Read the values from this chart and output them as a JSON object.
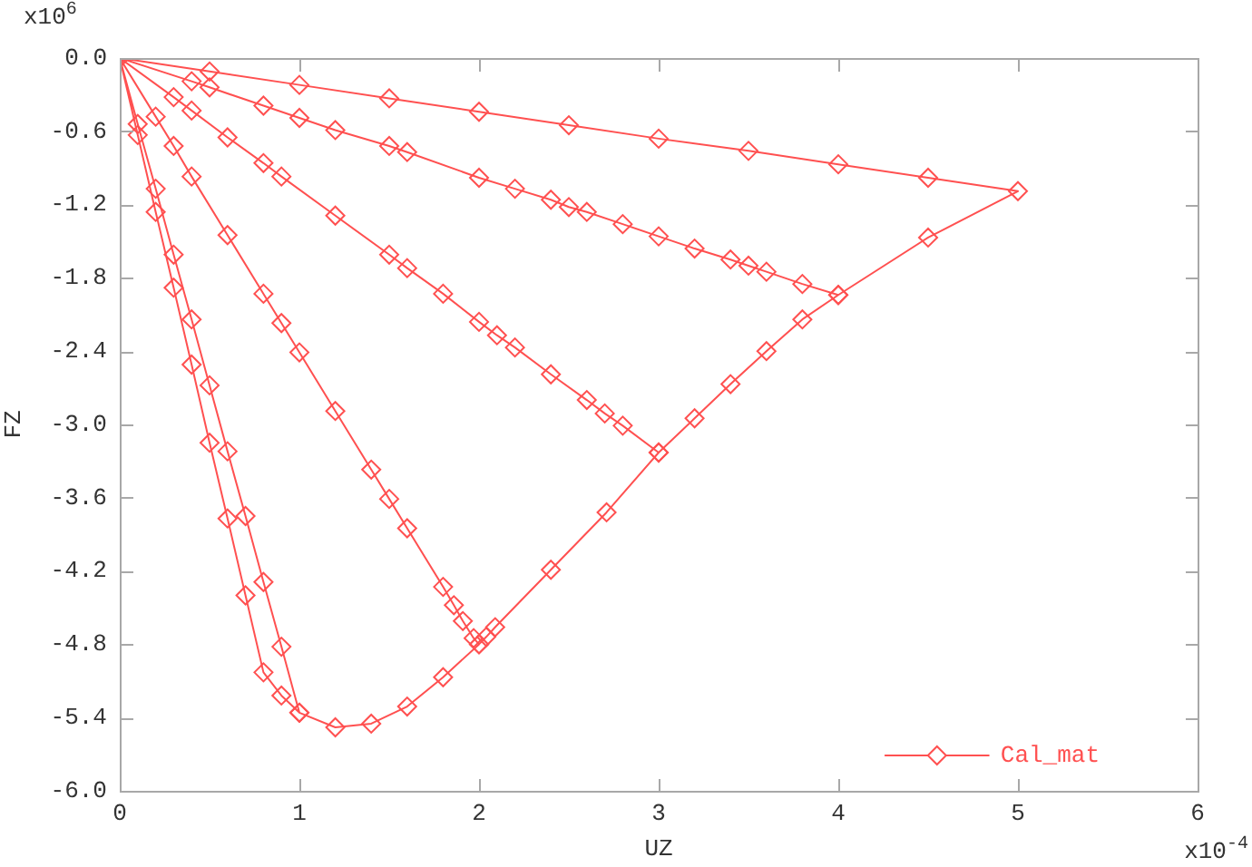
{
  "chart_data": {
    "type": "line",
    "xlabel": "UZ",
    "ylabel": "FZ",
    "annotations": [
      "x10$^{6}$",
      "x10$^{-4}$"
    ],
    "xlim": [
      0,
      6
    ],
    "ylim": [
      -6,
      0
    ],
    "xticks": [
      0,
      1,
      2,
      3,
      4,
      5,
      6
    ],
    "yticks": [
      {
        "value": 0,
        "label": "0.0"
      },
      {
        "value": -0.6,
        "label": "-0.6"
      },
      {
        "value": -1.2,
        "label": "-1.2"
      },
      {
        "value": -1.8,
        "label": "-1.8"
      },
      {
        "value": -2.4,
        "label": "-2.4"
      },
      {
        "value": -3,
        "label": "-3.0"
      },
      {
        "value": -3.6,
        "label": "-3.6"
      },
      {
        "value": -4.2,
        "label": "-4.2"
      },
      {
        "value": -4.8,
        "label": "-4.8"
      },
      {
        "value": -5.4,
        "label": "-5.4"
      },
      {
        "value": -6,
        "label": "-6.0"
      }
    ],
    "legend": "bottom right",
    "marker": "diamond",
    "line_style": "solid",
    "series": [
      {
        "name": "Cal_mat",
        "color": "#ff5050",
        "x": [
          1.0,
          0.9,
          0.8,
          0.7,
          0.6,
          0.5,
          0.4,
          0.3,
          0.2,
          0.1,
          0,
          0.1,
          0.2,
          0.3,
          0.4,
          0.5,
          0.6,
          0.7,
          0.8,
          0.9,
          1.0,
          1.2,
          1.4,
          1.6,
          1.8,
          2.0,
          1.97,
          1.91,
          1.86,
          1.8,
          1.6,
          1.5,
          1.4,
          1.2,
          1.0,
          0.9,
          0.8,
          0.6,
          0.4,
          0.3,
          0.2,
          0,
          0.3,
          0.4,
          0.6,
          0.8,
          0.9,
          1.2,
          1.5,
          1.6,
          1.8,
          2.0,
          2.1,
          2.2,
          2.4,
          2.6,
          2.7,
          2.8,
          3.0,
          2.71,
          2.4,
          2.09,
          2.04,
          2.0,
          null,
          3.0,
          3.2,
          3.4,
          3.6,
          3.8,
          4.0,
          3.8,
          3.6,
          3.5,
          3.4,
          3.2,
          3.0,
          2.8,
          2.6,
          2.5,
          2.4,
          2.2,
          2.0,
          1.6,
          1.5,
          1.2,
          1.0,
          0.8,
          0.5,
          0.4,
          0,
          0.5,
          1.0,
          1.5,
          2.0,
          2.5,
          3.0,
          3.5,
          4.0,
          4.5,
          5.0,
          4.5,
          4.0
        ],
        "values": [
          -5.36,
          -4.82,
          -4.29,
          -3.75,
          -3.22,
          -2.68,
          -2.14,
          -1.61,
          -1.07,
          -0.54,
          0,
          -0.63,
          -1.26,
          -1.88,
          -2.51,
          -3.15,
          -3.77,
          -4.4,
          -5.03,
          -5.22,
          -5.36,
          -5.48,
          -5.45,
          -5.31,
          -5.07,
          -4.8,
          -4.75,
          -4.61,
          -4.48,
          -4.33,
          -3.85,
          -3.61,
          -3.37,
          -2.89,
          -2.41,
          -2.17,
          -1.93,
          -1.45,
          -0.97,
          -0.72,
          -0.48,
          0,
          -0.32,
          -0.43,
          -0.65,
          -0.86,
          -0.97,
          -1.29,
          -1.61,
          -1.72,
          -1.93,
          -2.16,
          -2.27,
          -2.37,
          -2.59,
          -2.8,
          -2.91,
          -3.01,
          -3.23,
          -3.72,
          -4.19,
          -4.66,
          -4.74,
          -4.8,
          null,
          -3.23,
          -2.95,
          -2.67,
          -2.4,
          -2.14,
          -1.94,
          -1.85,
          -1.75,
          -1.7,
          -1.65,
          -1.56,
          -1.46,
          -1.36,
          -1.26,
          -1.22,
          -1.16,
          -1.07,
          -0.98,
          -0.77,
          -0.72,
          -0.59,
          -0.49,
          -0.39,
          -0.24,
          -0.19,
          0,
          -0.11,
          -0.22,
          -0.33,
          -0.44,
          -0.55,
          -0.66,
          -0.76,
          -0.87,
          -0.98,
          -1.09,
          -1.47,
          -1.94
        ]
      }
    ]
  }
}
